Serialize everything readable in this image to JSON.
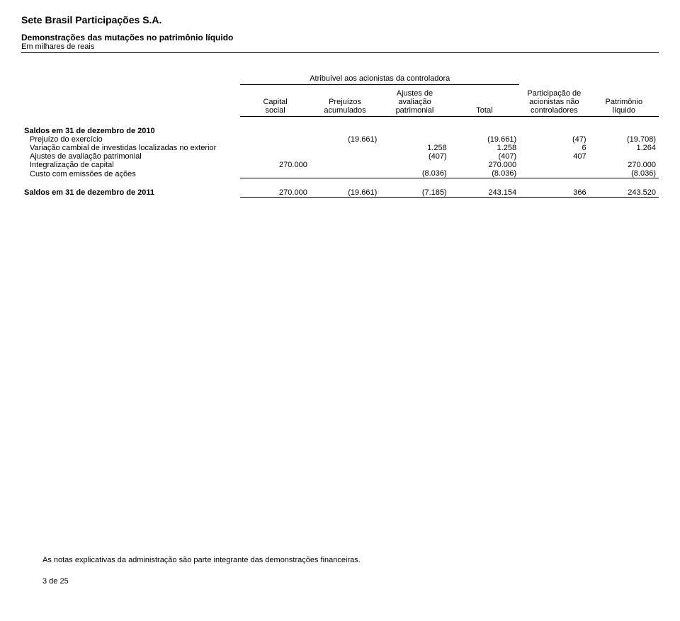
{
  "company_name": "Sete Brasil Participações S.A.",
  "statement_title": "Demonstrações das mutações no patrimônio líquido",
  "currency_note": "Em milhares de reais",
  "attributable_heading": "Atribuível aos acionistas da controladora",
  "columns": {
    "capital": {
      "line1": "Capital",
      "line2": "social"
    },
    "prejuizos": {
      "line1": "Prejuízos",
      "line2": "acumulados"
    },
    "ajustes": {
      "line1": "Ajustes de",
      "line2": "avaliação",
      "line3": "patrimonial"
    },
    "total": {
      "line1": "Total"
    },
    "participacao": {
      "line1": "Participação de",
      "line2": "acionistas não",
      "line3": "controladores"
    },
    "patrimonio": {
      "line1": "Patrimônio",
      "line2": "líquido"
    }
  },
  "rows": {
    "saldos2010": {
      "label": "Saldos em 31 de dezembro de 2010"
    },
    "prejuizo": {
      "label": "Prejuízo do exercício",
      "prejuizos": "(19.661)",
      "total": "(19.661)",
      "participacao": "(47)",
      "patrimonio": "(19.708)"
    },
    "variacao": {
      "label": "Variação cambial de investidas localizadas no exterior",
      "ajustes": "1.258",
      "total": "1.258",
      "participacao": "6",
      "patrimonio": "1.264"
    },
    "ajustes_av": {
      "label": "Ajustes de avaliação patrimonial",
      "ajustes": "(407)",
      "total": "(407)",
      "participacao": "407"
    },
    "integralizacao": {
      "label": "Integralização de capital",
      "capital": "270.000",
      "total": "270.000",
      "patrimonio": "270.000"
    },
    "custo": {
      "label": "Custo com emissões de ações",
      "ajustes": "(8.036)",
      "total": "(8.036)",
      "patrimonio": "(8.036)"
    },
    "saldos2011": {
      "label": "Saldos em 31 de dezembro de 2011",
      "capital": "270.000",
      "prejuizos": "(19.661)",
      "ajustes": "(7.185)",
      "total": "243.154",
      "participacao": "366",
      "patrimonio": "243.520"
    }
  },
  "footnote": "As notas explicativas da administração são parte integrante das demonstrações financeiras.",
  "page_number": "3 de 25"
}
